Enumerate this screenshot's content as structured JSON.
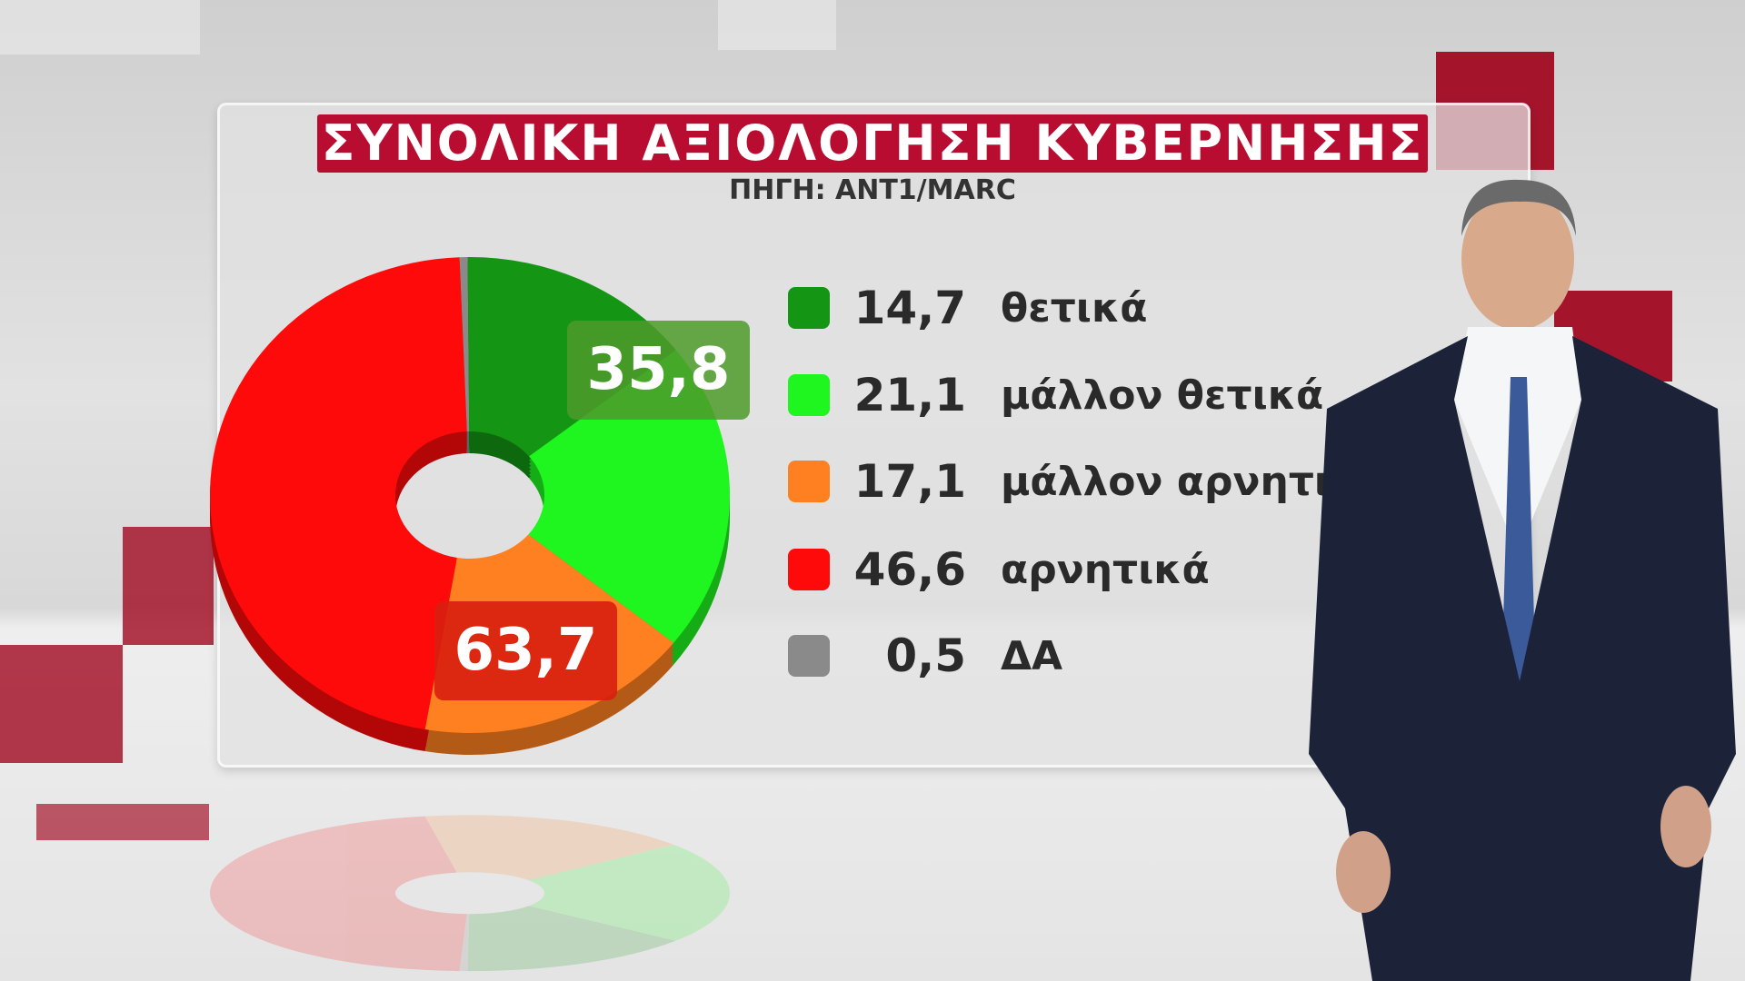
{
  "title": "ΣΥΝΟΛΙΚΗ ΑΞΙΟΛΟΓΗΣΗ ΚΥΒΕΡΝΗΣΗΣ",
  "subtitle": "ΠΗΓΗ: ANT1/MARC",
  "chart_data": {
    "type": "pie",
    "style": "3d-donut",
    "title": "ΣΥΝΟΛΙΚΗ ΑΞΙΟΛΟΓΗΣΗ ΚΥΒΕΡΝΗΣΗΣ",
    "legend": "right",
    "slices": [
      {
        "label": "ΔΑ",
        "value": 0.5,
        "color": "#8a8a8a"
      },
      {
        "label": "θετικά",
        "value": 14.7,
        "color": "#149614"
      },
      {
        "label": "μάλλον θετικά",
        "value": 21.1,
        "color": "#1ff51f"
      },
      {
        "label": "μάλλον αρνητικά",
        "value": 17.1,
        "color": "#ff8020"
      },
      {
        "label": "αρνητικά",
        "value": 46.6,
        "color": "#ff0a0a"
      }
    ],
    "legend_order": [
      1,
      2,
      3,
      4,
      0
    ],
    "group_labels": [
      {
        "text": "35,8",
        "color": "#4e9a2a"
      },
      {
        "text": "63,7",
        "color": "#d81e10"
      }
    ],
    "legend_values": [
      "14,7",
      "21,1",
      "17,1",
      "46,6",
      "0,5"
    ]
  }
}
